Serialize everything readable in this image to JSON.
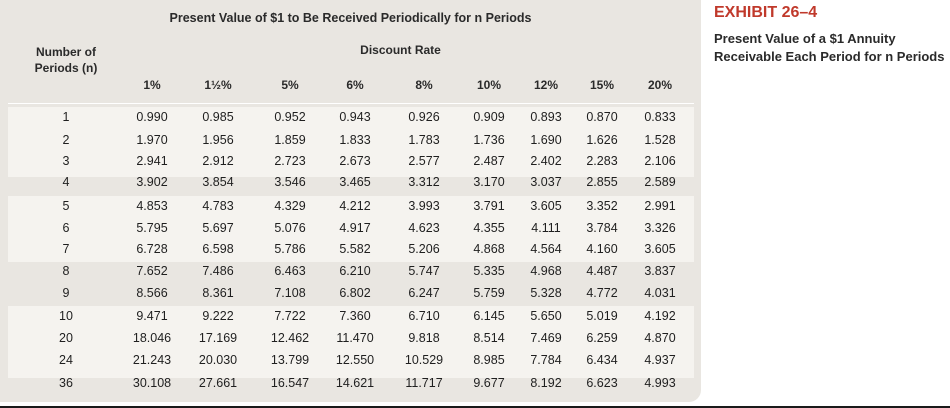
{
  "table": {
    "title": "Present Value of $1 to Be Received Periodically for n Periods",
    "periods_header": "Number of Periods (n)",
    "discount_header": "Discount Rate",
    "rates": [
      "1%",
      "1½%",
      "5%",
      "6%",
      "8%",
      "10%",
      "12%",
      "15%",
      "20%"
    ],
    "rows": [
      {
        "n": "1",
        "values": [
          "0.990",
          "0.985",
          "0.952",
          "0.943",
          "0.926",
          "0.909",
          "0.893",
          "0.870",
          "0.833"
        ]
      },
      {
        "n": "2",
        "values": [
          "1.970",
          "1.956",
          "1.859",
          "1.833",
          "1.783",
          "1.736",
          "1.690",
          "1.626",
          "1.528"
        ]
      },
      {
        "n": "3",
        "values": [
          "2.941",
          "2.912",
          "2.723",
          "2.673",
          "2.577",
          "2.487",
          "2.402",
          "2.283",
          "2.106"
        ]
      },
      {
        "n": "4",
        "values": [
          "3.902",
          "3.854",
          "3.546",
          "3.465",
          "3.312",
          "3.170",
          "3.037",
          "2.855",
          "2.589"
        ]
      },
      {
        "n": "5",
        "values": [
          "4.853",
          "4.783",
          "4.329",
          "4.212",
          "3.993",
          "3.791",
          "3.605",
          "3.352",
          "2.991"
        ]
      },
      {
        "n": "6",
        "values": [
          "5.795",
          "5.697",
          "5.076",
          "4.917",
          "4.623",
          "4.355",
          "4.111",
          "3.784",
          "3.326"
        ]
      },
      {
        "n": "7",
        "values": [
          "6.728",
          "6.598",
          "5.786",
          "5.582",
          "5.206",
          "4.868",
          "4.564",
          "4.160",
          "3.605"
        ]
      },
      {
        "n": "8",
        "values": [
          "7.652",
          "7.486",
          "6.463",
          "6.210",
          "5.747",
          "5.335",
          "4.968",
          "4.487",
          "3.837"
        ]
      },
      {
        "n": "9",
        "values": [
          "8.566",
          "8.361",
          "7.108",
          "6.802",
          "6.247",
          "5.759",
          "5.328",
          "4.772",
          "4.031"
        ]
      },
      {
        "n": "10",
        "values": [
          "9.471",
          "9.222",
          "7.722",
          "7.360",
          "6.710",
          "6.145",
          "5.650",
          "5.019",
          "4.192"
        ]
      },
      {
        "n": "20",
        "values": [
          "18.046",
          "17.169",
          "12.462",
          "11.470",
          "9.818",
          "8.514",
          "7.469",
          "6.259",
          "4.870"
        ]
      },
      {
        "n": "24",
        "values": [
          "21.243",
          "20.030",
          "13.799",
          "12.550",
          "10.529",
          "8.985",
          "7.784",
          "6.434",
          "4.937"
        ]
      },
      {
        "n": "36",
        "values": [
          "30.108",
          "27.661",
          "16.547",
          "14.621",
          "11.717",
          "9.677",
          "8.192",
          "6.623",
          "4.993"
        ]
      }
    ]
  },
  "exhibit": {
    "title": "EXHIBIT 26–4",
    "subtitle": "Present Value of a $1 Annuity Receivable Each Period for n Periods"
  },
  "colors": {
    "panel": "#e9e6e1",
    "band": "#f5f3ef",
    "exhibit_title": "#c0392b"
  }
}
